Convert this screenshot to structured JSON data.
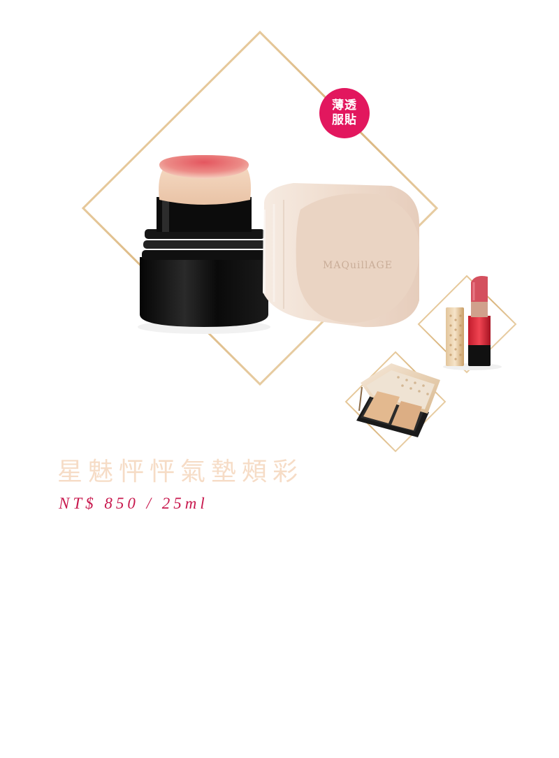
{
  "badge": {
    "line1": "薄透",
    "line2": "服貼"
  },
  "product": {
    "brand_mark": "MAQuillAGE",
    "name": "星魅怦怦氣墊頰彩",
    "price": "NT$ 850 / 25ml"
  },
  "colors": {
    "badge": "#e2175e",
    "name_text": "#f6dcc6",
    "price_text": "#c8194e",
    "frame_gold": "#e2c69a"
  }
}
